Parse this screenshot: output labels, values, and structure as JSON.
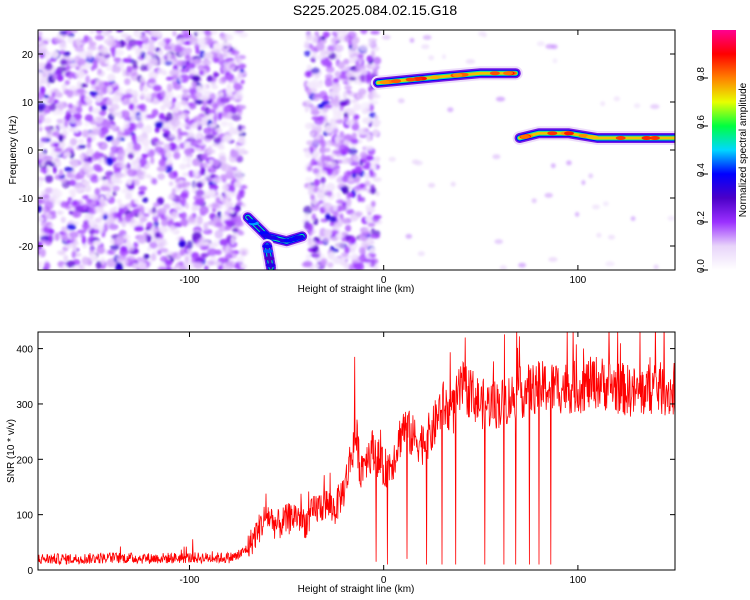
{
  "page": {
    "title": "S225.2025.084.02.15.G18"
  },
  "chart_data": [
    {
      "type": "heatmap",
      "xlabel": "Height of straight line (km)",
      "ylabel": "Frequency (Hz)",
      "xlim": [
        -178,
        150
      ],
      "ylim": [
        -25,
        25
      ],
      "xticks": [
        -100,
        0,
        100
      ],
      "yticks": [
        -20,
        -10,
        0,
        10,
        20
      ],
      "grid": false,
      "colorbar": {
        "label": "Normalized spectral amplitude",
        "range": [
          0,
          1
        ],
        "ticks": [
          0.0,
          0.2,
          0.4,
          0.6,
          0.8
        ],
        "colormap": [
          "#ffffff",
          "#e8d4fa",
          "#9b30ff",
          "#4b00c8",
          "#0000ff",
          "#00d8ff",
          "#00ff40",
          "#e8ff00",
          "#ff8000",
          "#ff0000",
          "#ff0090"
        ]
      },
      "regions": [
        {
          "description_id": "noise-left",
          "x": [
            -178,
            -72
          ],
          "y": [
            -25,
            25
          ],
          "amplitude": 0.15
        },
        {
          "description_id": "noise-mid",
          "x": [
            -40,
            -3
          ],
          "y": [
            -25,
            25
          ],
          "amplitude": 0.15
        }
      ],
      "tracks": [
        {
          "x": [
            -70,
            -60,
            -50,
            -42
          ],
          "y": [
            -14,
            -18,
            -19,
            -18
          ],
          "amplitude": 0.35
        },
        {
          "x": [
            -60,
            -58
          ],
          "y": [
            -20,
            -24.5
          ],
          "amplitude": 0.3
        },
        {
          "x": [
            -3,
            10,
            30,
            50,
            68
          ],
          "y": [
            14,
            14.5,
            15.3,
            16,
            16
          ],
          "amplitude": 0.75
        },
        {
          "x": [
            70,
            80,
            95,
            110,
            150
          ],
          "y": [
            2.5,
            3.5,
            3.5,
            2.5,
            2.5
          ],
          "amplitude": 0.75
        }
      ]
    },
    {
      "type": "line",
      "xlabel": "Height of straight line (km)",
      "ylabel": "SNR (10 * v/v)",
      "xlim": [
        -178,
        150
      ],
      "ylim": [
        0,
        430
      ],
      "xticks": [
        -100,
        0,
        100
      ],
      "yticks": [
        0,
        100,
        200,
        300,
        400
      ],
      "grid": false,
      "series": [
        {
          "color": "#ff0000",
          "x": [
            -178,
            -160,
            -140,
            -120,
            -100,
            -90,
            -80,
            -75,
            -70,
            -65,
            -60,
            -55,
            -50,
            -45,
            -40,
            -35,
            -30,
            -25,
            -20,
            -16,
            -14,
            -12,
            -10,
            -5,
            0,
            5,
            10,
            15,
            20,
            25,
            30,
            35,
            40,
            45,
            50,
            60,
            70,
            80,
            90,
            100,
            110,
            120,
            130,
            140,
            150
          ],
          "values": [
            20,
            20,
            22,
            21,
            22,
            22,
            22,
            25,
            40,
            70,
            100,
            80,
            90,
            100,
            85,
            110,
            120,
            110,
            150,
            220,
            240,
            180,
            200,
            220,
            180,
            200,
            260,
            240,
            230,
            250,
            300,
            280,
            330,
            320,
            300,
            300,
            320,
            330,
            330,
            330,
            340,
            330,
            320,
            330,
            320
          ],
          "dips": [
            {
              "x": -15,
              "y": 385
            },
            {
              "x": -4,
              "y": 15
            },
            {
              "x": 2,
              "y": 10
            },
            {
              "x": 12,
              "y": 20
            },
            {
              "x": 22,
              "y": 10
            },
            {
              "x": 30,
              "y": 10
            },
            {
              "x": 37,
              "y": 10
            },
            {
              "x": 42,
              "y": 420
            },
            {
              "x": 52,
              "y": 10
            },
            {
              "x": 62,
              "y": 10
            },
            {
              "x": 68,
              "y": 10
            },
            {
              "x": 75,
              "y": 10
            },
            {
              "x": 80,
              "y": 10
            },
            {
              "x": 86,
              "y": 10
            }
          ],
          "noise": 22
        }
      ]
    }
  ]
}
